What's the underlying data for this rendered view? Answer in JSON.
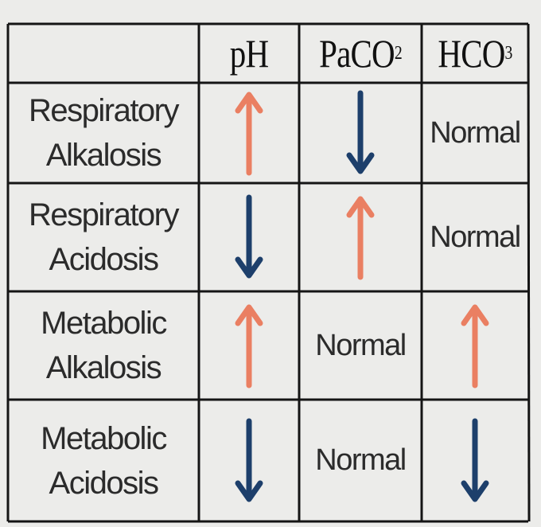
{
  "table": {
    "headers": {
      "ph": "pH",
      "paco2_main": "PaCO",
      "paco2_sub": "2",
      "hco3_main": "HCO",
      "hco3_sub": "3"
    },
    "rows": [
      {
        "label_line1": "Respiratory",
        "label_line2": "Alkalosis",
        "ph": "up",
        "paco2": "down",
        "hco3": "Normal"
      },
      {
        "label_line1": "Respiratory",
        "label_line2": "Acidosis",
        "ph": "down",
        "paco2": "up",
        "hco3": "Normal"
      },
      {
        "label_line1": "Metabolic",
        "label_line2": "Alkalosis",
        "ph": "up",
        "paco2": "Normal",
        "hco3": "up"
      },
      {
        "label_line1": "Metabolic",
        "label_line2": "Acidosis",
        "ph": "down",
        "paco2": "Normal",
        "hco3": "down"
      }
    ]
  },
  "colors": {
    "up_arrow": "#ea7f62",
    "down_arrow": "#1d3f6b",
    "grid_line": "#151515"
  },
  "icons": {
    "up": "arrow-up-icon",
    "down": "arrow-down-icon"
  }
}
